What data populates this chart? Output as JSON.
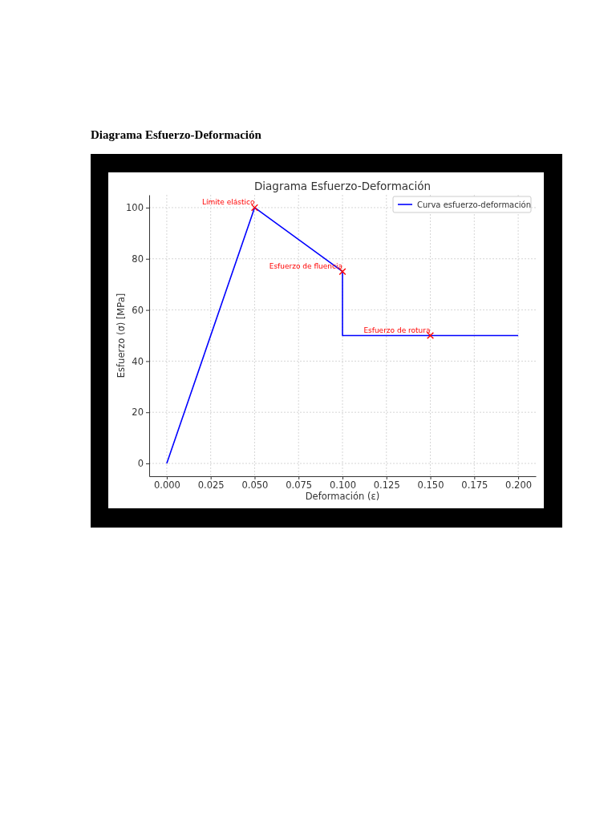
{
  "chart_data": {
    "type": "line",
    "title": "Diagrama Esfuerzo-Deformación",
    "xlabel": "Deformación (ε)",
    "ylabel": "Esfuerzo (σ) [MPa]",
    "xlim": [
      -0.01,
      0.21
    ],
    "xticks": [
      {
        "value": 0,
        "label": "0.000"
      },
      {
        "value": 0.025,
        "label": "0.025"
      },
      {
        "value": 0.05,
        "label": "0.050"
      },
      {
        "value": 0.075,
        "label": "0.075"
      },
      {
        "value": 0.1,
        "label": "0.100"
      },
      {
        "value": 0.125,
        "label": "0.125"
      },
      {
        "value": 0.15,
        "label": "0.150"
      },
      {
        "value": 0.175,
        "label": "0.175"
      },
      {
        "value": 0.2,
        "label": "0.200"
      }
    ],
    "ylim": [
      -5,
      105
    ],
    "yticks": [
      0,
      20,
      40,
      60,
      80,
      100
    ],
    "grid": true,
    "legend": "top right",
    "series": [
      {
        "name": "Curva esfuerzo-deformación",
        "color": "#0000ff",
        "marker": "none",
        "line_style": "solid",
        "x": [
          0,
          0.05,
          0.1,
          0.1,
          0.2
        ],
        "values": [
          0,
          100,
          75,
          50,
          50
        ]
      },
      {
        "type": "scatter",
        "color": "#ff0000",
        "marker": "cross",
        "x": [
          0.05,
          0.1,
          0.15
        ],
        "values": [
          100,
          75,
          50
        ]
      }
    ],
    "annotations": [
      "Diagrama Esfuerzo-Deformación",
      {
        "text": "Límite elástico",
        "x": 0.05,
        "y": 100
      },
      {
        "text": "Esfuerzo de fluencia",
        "x": 0.1,
        "y": 75
      },
      {
        "text": "Esfuerzo de rotura",
        "x": 0.15,
        "y": 50
      }
    ]
  }
}
